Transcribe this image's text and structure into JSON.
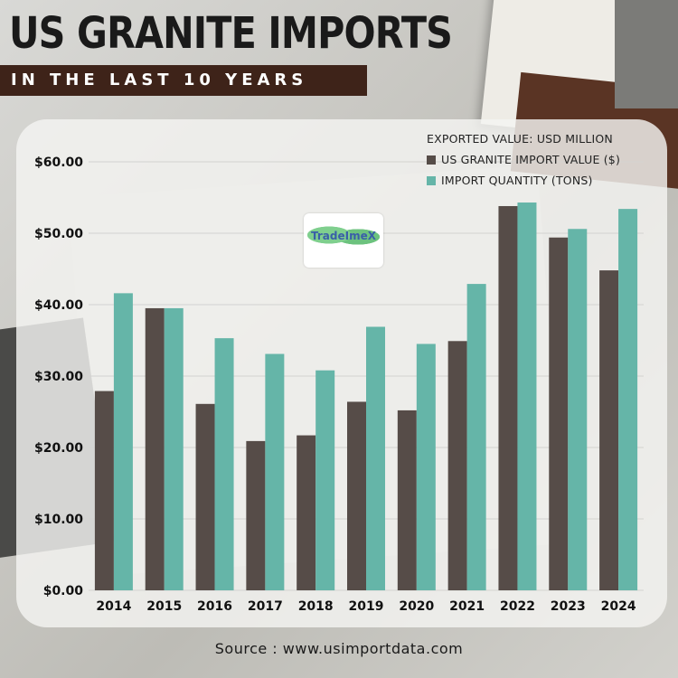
{
  "header": {
    "title": "US GRANITE IMPORTS",
    "subtitle": "IN THE LAST 10 YEARS"
  },
  "logo_text": "TradeImeX",
  "source": "Source : www.usimportdata.com",
  "colors": {
    "value_series": "#564c48",
    "quantity_series": "#65b5a8",
    "title_band": "#3e2319"
  },
  "chart_data": {
    "type": "bar",
    "title": "",
    "legend_title": "EXPORTED VALUE: USD MILLION",
    "legend_position": "top-right",
    "categories": [
      "2014",
      "2015",
      "2016",
      "2017",
      "2018",
      "2019",
      "2020",
      "2021",
      "2022",
      "2023",
      "2024"
    ],
    "series": [
      {
        "name": "US GRANITE IMPORT VALUE ($)",
        "values": [
          27.9,
          39.5,
          26.1,
          20.9,
          21.7,
          26.4,
          25.2,
          34.9,
          53.8,
          49.4,
          44.8
        ]
      },
      {
        "name": "IMPORT QUANTITY (TONS)",
        "values": [
          41.6,
          39.5,
          35.3,
          33.1,
          30.8,
          36.9,
          34.5,
          42.9,
          54.3,
          50.6,
          53.4
        ]
      }
    ],
    "yticks": [
      "$0.00",
      "$10.00",
      "$20.00",
      "$30.00",
      "$40.00",
      "$50.00",
      "$60.00"
    ],
    "ylim": [
      0,
      60
    ],
    "grid": true,
    "xlabel": "",
    "ylabel": ""
  }
}
